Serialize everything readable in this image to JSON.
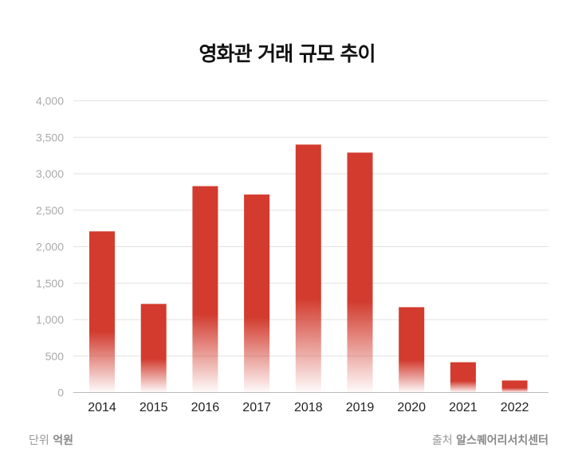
{
  "chart_data": {
    "type": "bar",
    "title": "영화관 거래 규모 추이",
    "categories": [
      "2014",
      "2015",
      "2016",
      "2017",
      "2018",
      "2019",
      "2020",
      "2021",
      "2022"
    ],
    "values": [
      2210,
      1215,
      2830,
      2715,
      3400,
      3290,
      1170,
      415,
      165
    ],
    "ylim": [
      0,
      4000
    ],
    "yticks": [
      "0",
      "500",
      "1,000",
      "1,500",
      "2,000",
      "2,500",
      "3,000",
      "3,500",
      "4,000"
    ],
    "ytick_values": [
      0,
      500,
      1000,
      1500,
      2000,
      2500,
      3000,
      3500,
      4000
    ],
    "grid": true,
    "bar_color": "#d23b2e",
    "unit_label": "단위",
    "unit_value": "억원",
    "source_label": "출처",
    "source_value": "알스퀘어리서치센터"
  }
}
